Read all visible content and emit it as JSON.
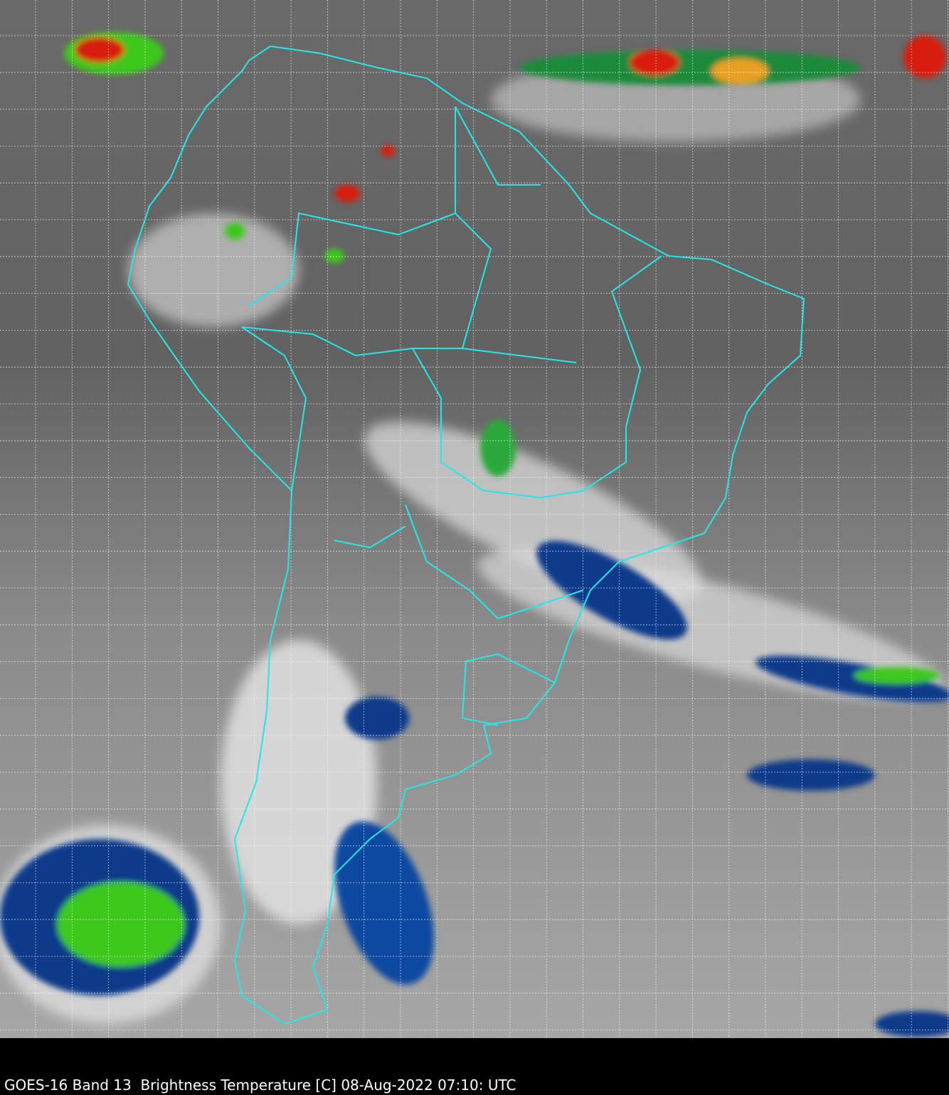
{
  "caption": "GOES-16 Band 13  Brightness Temperature [C] 08-Aug-2022 07:10: UTC",
  "colors": {
    "boundaries": "#22e8e8",
    "grid": "#ffffff",
    "cold_cloud_blue": "#0a3a8a",
    "cold_cloud_green": "#3ec81e",
    "coldest_red": "#d81e10",
    "background": "#000000"
  }
}
